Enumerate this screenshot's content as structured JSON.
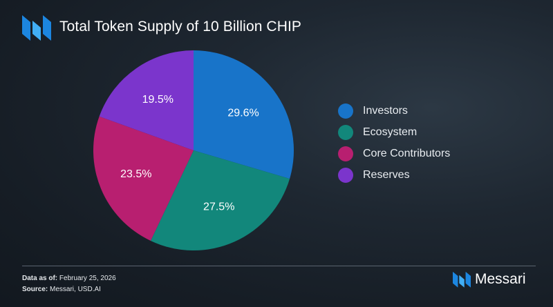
{
  "header": {
    "title": "Total Token Supply of 10 Billion CHIP"
  },
  "colors": {
    "background": "#161d25",
    "brand_blue": "#1f8fe3"
  },
  "chart_data": {
    "type": "pie",
    "title": "Total Token Supply of 10 Billion CHIP",
    "slices": [
      {
        "label": "Investors",
        "value": 29.6,
        "display": "29.6%",
        "color": "#1874c9"
      },
      {
        "label": "Ecosystem",
        "value": 27.5,
        "display": "27.5%",
        "color": "#12877b"
      },
      {
        "label": "Core Contributors",
        "value": 23.5,
        "display": "23.5%",
        "color": "#b81f70"
      },
      {
        "label": "Reserves",
        "value": 19.5,
        "display": "19.5%",
        "color": "#7b35cc"
      }
    ],
    "legend_position": "right"
  },
  "footer": {
    "data_as_of_label": "Data as of:",
    "data_as_of_value": "February 25, 2026",
    "source_label": "Source:",
    "source_value": "Messari, USD.AI"
  },
  "brand": {
    "name": "Messari",
    "logo_icon": "messari-logo-icon"
  }
}
